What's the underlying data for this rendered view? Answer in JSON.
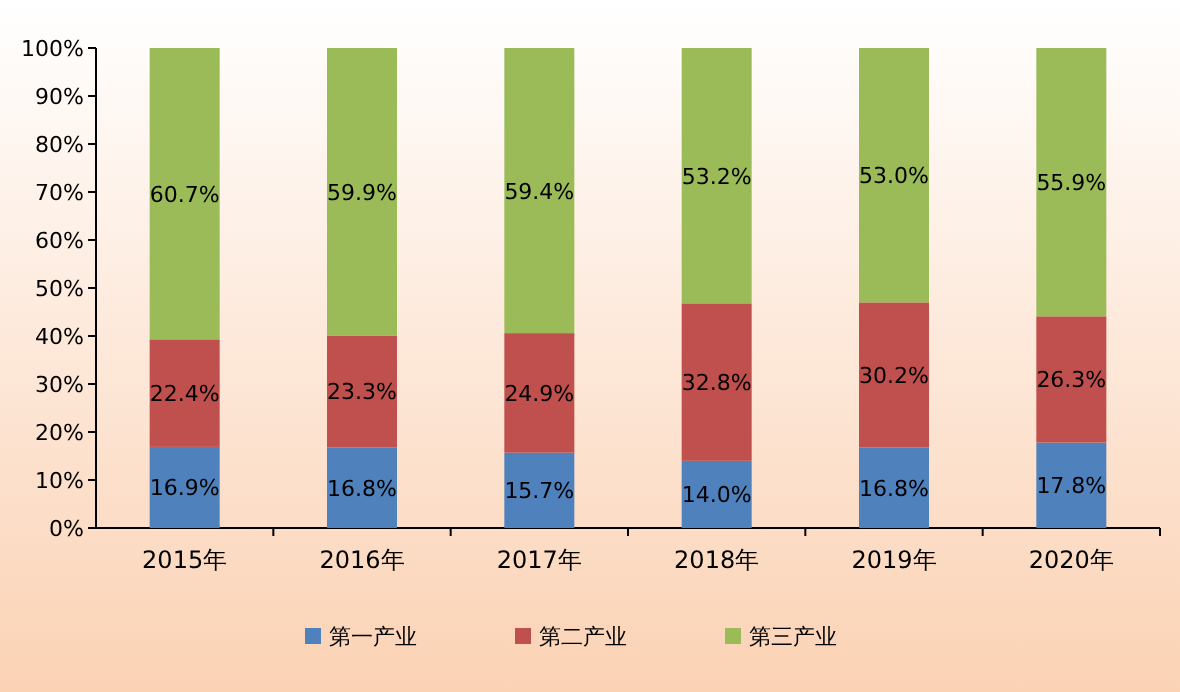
{
  "chart_data": {
    "type": "bar",
    "stacked": true,
    "categories": [
      "2015年",
      "2016年",
      "2017年",
      "2018年",
      "2019年",
      "2020年"
    ],
    "series": [
      {
        "name": "第一产业",
        "color": "#4f81bd",
        "values": [
          16.9,
          16.8,
          15.7,
          14.0,
          16.8,
          17.8
        ],
        "value_labels": [
          "16.9%",
          "16.8%",
          "15.7%",
          "14.0%",
          "16.8%",
          "17.8%"
        ]
      },
      {
        "name": "第二产业",
        "color": "#c0504d",
        "values": [
          22.4,
          23.3,
          24.9,
          32.8,
          30.2,
          26.3
        ],
        "value_labels": [
          "22.4%",
          "23.3%",
          "24.9%",
          "32.8%",
          "30.2%",
          "26.3%"
        ]
      },
      {
        "name": "第三产业",
        "color": "#9bbb59",
        "values": [
          60.7,
          59.9,
          59.4,
          53.2,
          53.0,
          55.9
        ],
        "value_labels": [
          "60.7%",
          "59.9%",
          "59.4%",
          "53.2%",
          "53.0%",
          "55.9%"
        ]
      }
    ],
    "ylim": [
      0,
      100
    ],
    "yticks": [
      {
        "value": 0,
        "label": "0%"
      },
      {
        "value": 10,
        "label": "10%"
      },
      {
        "value": 20,
        "label": "20%"
      },
      {
        "value": 30,
        "label": "30%"
      },
      {
        "value": 40,
        "label": "40%"
      },
      {
        "value": 50,
        "label": "50%"
      },
      {
        "value": 60,
        "label": "60%"
      },
      {
        "value": 70,
        "label": "70%"
      },
      {
        "value": 80,
        "label": "80%"
      },
      {
        "value": 90,
        "label": "90%"
      },
      {
        "value": 100,
        "label": "100%"
      }
    ],
    "legend": "bottom"
  }
}
